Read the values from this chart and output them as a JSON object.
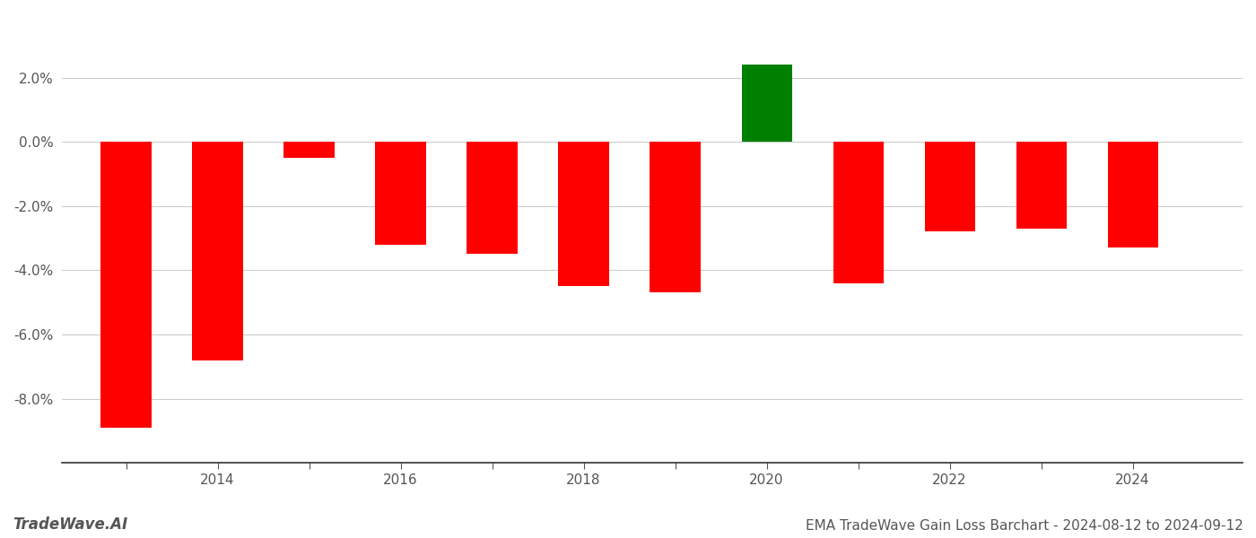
{
  "years": [
    2013,
    2014,
    2015,
    2016,
    2017,
    2018,
    2019,
    2020,
    2021,
    2022,
    2023,
    2024
  ],
  "values": [
    -0.089,
    -0.068,
    -0.005,
    -0.032,
    -0.035,
    -0.045,
    -0.047,
    0.024,
    -0.044,
    -0.028,
    -0.027,
    -0.033
  ],
  "colors": [
    "#ff0000",
    "#ff0000",
    "#ff0000",
    "#ff0000",
    "#ff0000",
    "#ff0000",
    "#ff0000",
    "#008000",
    "#ff0000",
    "#ff0000",
    "#ff0000",
    "#ff0000"
  ],
  "title": "EMA TradeWave Gain Loss Barchart - 2024-08-12 to 2024-09-12",
  "watermark": "TradeWave.AI",
  "bar_width": 0.55,
  "ylim": [
    -0.1,
    0.04
  ],
  "yticks": [
    -0.08,
    -0.06,
    -0.04,
    -0.02,
    0.0,
    0.02
  ],
  "xlim": [
    2012.3,
    2025.2
  ],
  "xtick_labels": [
    2014,
    2016,
    2018,
    2020,
    2022,
    2024
  ],
  "background_color": "#ffffff",
  "grid_color": "#cccccc",
  "axis_color": "#555555",
  "title_fontsize": 11,
  "watermark_fontsize": 12
}
